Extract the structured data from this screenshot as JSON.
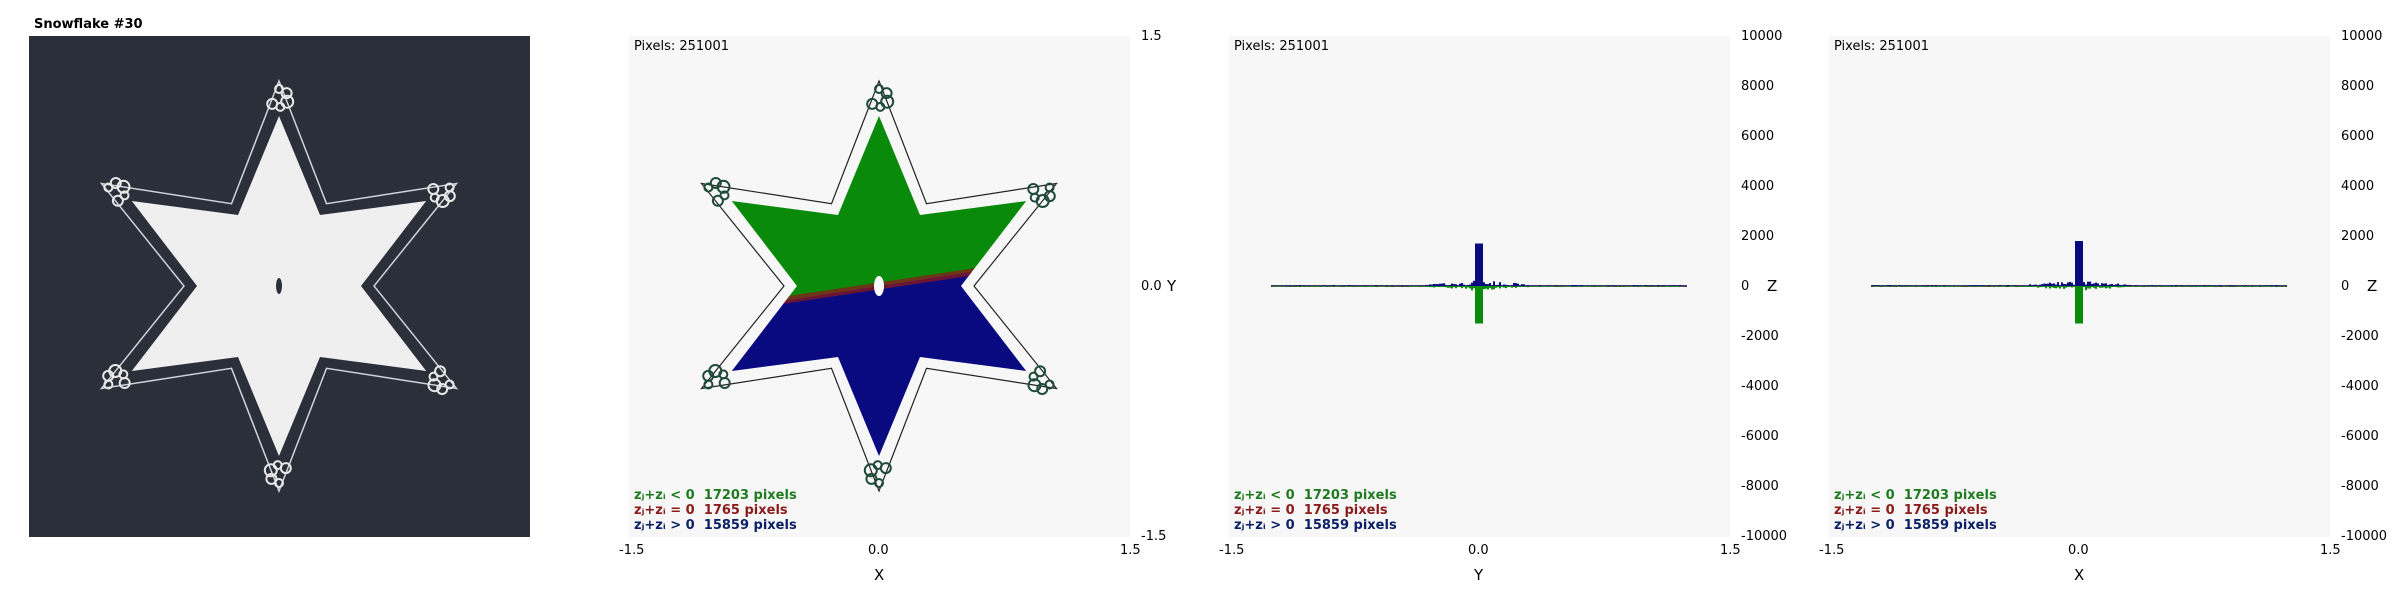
{
  "panel1": {
    "title": "Snowflake #30"
  },
  "colors": {
    "dark_bg": "#2a2f3a",
    "snow": "#efefef",
    "green": "#0a8a0a",
    "navy": "#0a0a80",
    "red": "#8b1a1a",
    "plot_bg": "#f7f7f7"
  },
  "plots": [
    {
      "pixels_text": "Pixels: 251001",
      "x_ticks": [
        "-1.5",
        "0.0",
        "1.5"
      ],
      "x_label": "X",
      "right_ticks": [
        "1.5",
        "0.0",
        "-1.5"
      ],
      "right_label": "Y",
      "legend": [
        {
          "cond": "zⱼ+zᵢ < 0",
          "count": "17203 pixels"
        },
        {
          "cond": "zⱼ+zᵢ = 0",
          "count": "1765 pixels"
        },
        {
          "cond": "zⱼ+zᵢ > 0",
          "count": "15859 pixels"
        }
      ]
    },
    {
      "pixels_text": "Pixels: 251001",
      "x_ticks": [
        "-1.5",
        "0.0",
        "1.5"
      ],
      "x_label": "Y",
      "right_ticks": [
        "10000",
        "8000",
        "6000",
        "4000",
        "2000",
        "0",
        "-2000",
        "-4000",
        "-6000",
        "-8000",
        "-10000"
      ],
      "right_label": "Z",
      "legend": [
        {
          "cond": "zⱼ+zᵢ < 0",
          "count": "17203 pixels"
        },
        {
          "cond": "zⱼ+zᵢ = 0",
          "count": "1765 pixels"
        },
        {
          "cond": "zⱼ+zᵢ > 0",
          "count": "15859 pixels"
        }
      ]
    },
    {
      "pixels_text": "Pixels: 251001",
      "x_ticks": [
        "-1.5",
        "0.0",
        "1.5"
      ],
      "x_label": "X",
      "right_ticks": [
        "10000",
        "8000",
        "6000",
        "4000",
        "2000",
        "0",
        "-2000",
        "-4000",
        "-6000",
        "-8000",
        "-10000"
      ],
      "right_label": "Z",
      "legend": [
        {
          "cond": "zⱼ+zᵢ < 0",
          "count": "17203 pixels"
        },
        {
          "cond": "zⱼ+zᵢ = 0",
          "count": "1765 pixels"
        },
        {
          "cond": "zⱼ+zᵢ > 0",
          "count": "15859 pixels"
        }
      ]
    }
  ],
  "chart_data": [
    {
      "type": "scatter",
      "x": {
        "ticks": [
          -1.5,
          0.0,
          1.5
        ]
      },
      "y": {
        "ticks": [
          1.5,
          0.0,
          -1.5
        ]
      },
      "series_counts": {
        "negative": 17203,
        "zero": 1765,
        "positive": 15859
      },
      "total_pixels": 251001
    },
    {
      "type": "bar",
      "x": {
        "ticks": [
          -1.5,
          0.0,
          1.5
        ]
      },
      "y": {
        "ticks": [
          10000,
          8000,
          6000,
          4000,
          2000,
          0,
          -2000,
          -4000,
          -6000,
          -8000,
          -10000
        ]
      },
      "peak_positive": 1700,
      "peak_negative": -1500,
      "series_counts": {
        "negative": 17203,
        "zero": 1765,
        "positive": 15859
      }
    },
    {
      "type": "bar",
      "x": {
        "ticks": [
          -1.5,
          0.0,
          1.5
        ]
      },
      "y": {
        "ticks": [
          10000,
          8000,
          6000,
          4000,
          2000,
          0,
          -2000,
          -4000,
          -6000,
          -8000,
          -10000
        ]
      },
      "peak_positive": 1800,
      "peak_negative": -1500,
      "series_counts": {
        "negative": 17203,
        "zero": 1765,
        "positive": 15859
      }
    }
  ]
}
